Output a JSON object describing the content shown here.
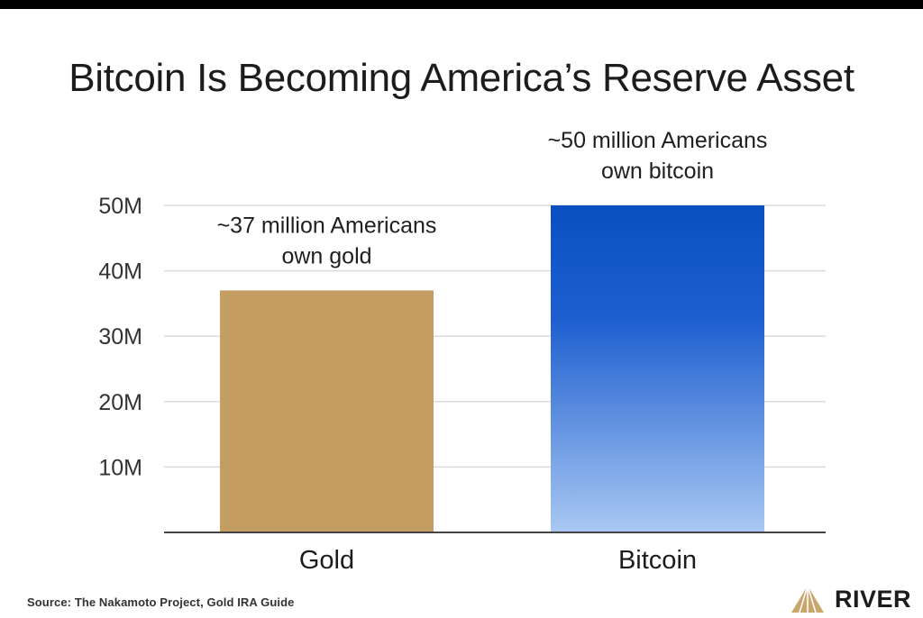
{
  "chart_data": {
    "type": "bar",
    "title": "Bitcoin Is Becoming America’s Reserve Asset",
    "categories": [
      "Gold",
      "Bitcoin"
    ],
    "values": [
      37000000,
      50000000
    ],
    "annotations": [
      [
        "~37 million Americans",
        "own gold"
      ],
      [
        "~50 million Americans",
        "own bitcoin"
      ]
    ],
    "yticks": [
      10000000,
      20000000,
      30000000,
      40000000,
      50000000
    ],
    "ytick_labels": [
      "10M",
      "20M",
      "30M",
      "40M",
      "50M"
    ],
    "ylim": [
      0,
      50000000
    ],
    "xlabel": "",
    "ylabel": "",
    "grid": true,
    "legend": "none",
    "colors": {
      "gold": "#c49d63",
      "bitcoin_top": "#0a4fc0",
      "bitcoin_bottom": "#a9c8f2",
      "grid": "#dcdcdc",
      "axis": "#444444"
    }
  },
  "footer": {
    "source": "Source: The Nakamoto Project, Gold IRA Guide",
    "brand_name": "RIVER",
    "brand_icon": "river-mountain-icon"
  }
}
